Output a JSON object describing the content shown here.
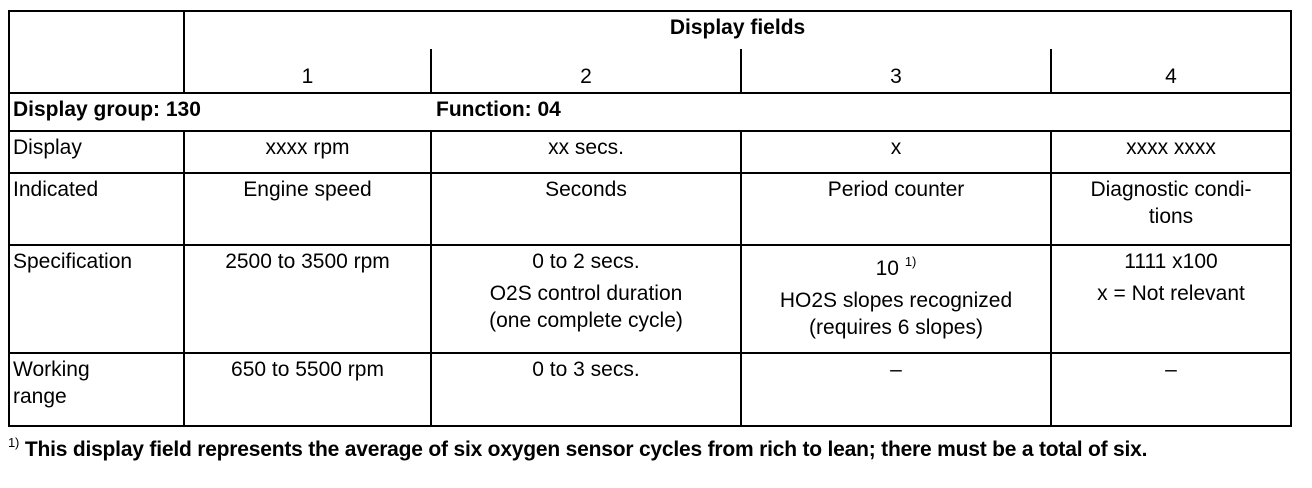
{
  "header": {
    "title": "Display fields",
    "columns": [
      "1",
      "2",
      "3",
      "4"
    ]
  },
  "group": {
    "label": "Display group: 130",
    "function": "Function: 04"
  },
  "rows": [
    {
      "label": "Display",
      "cells": [
        "xxxx rpm",
        "xx secs.",
        "x",
        "xxxx xxxx"
      ]
    },
    {
      "label": "Indicated",
      "cells": [
        "Engine speed",
        "Seconds",
        "Period counter",
        [
          "Diagnostic condi-",
          "tions"
        ]
      ]
    },
    {
      "label": "Specification",
      "cells": [
        "2500 to 3500 rpm",
        [
          "0 to 2 secs.",
          "O2S control duration",
          "(one complete cycle)"
        ],
        {
          "text": "10",
          "note": "1)",
          "lines": [
            "HO2S slopes recognized",
            "(requires 6 slopes)"
          ]
        },
        [
          "1111 x100",
          "x = Not relevant"
        ]
      ]
    },
    {
      "label": "Working range",
      "cells": [
        "650 to 5500 rpm",
        "0 to 3 secs.",
        "–",
        "–"
      ]
    }
  ],
  "footnote": {
    "marker": "1)",
    "text": "This display field represents the average of six oxygen sensor cycles from rich to lean;  there must be a total of six."
  }
}
